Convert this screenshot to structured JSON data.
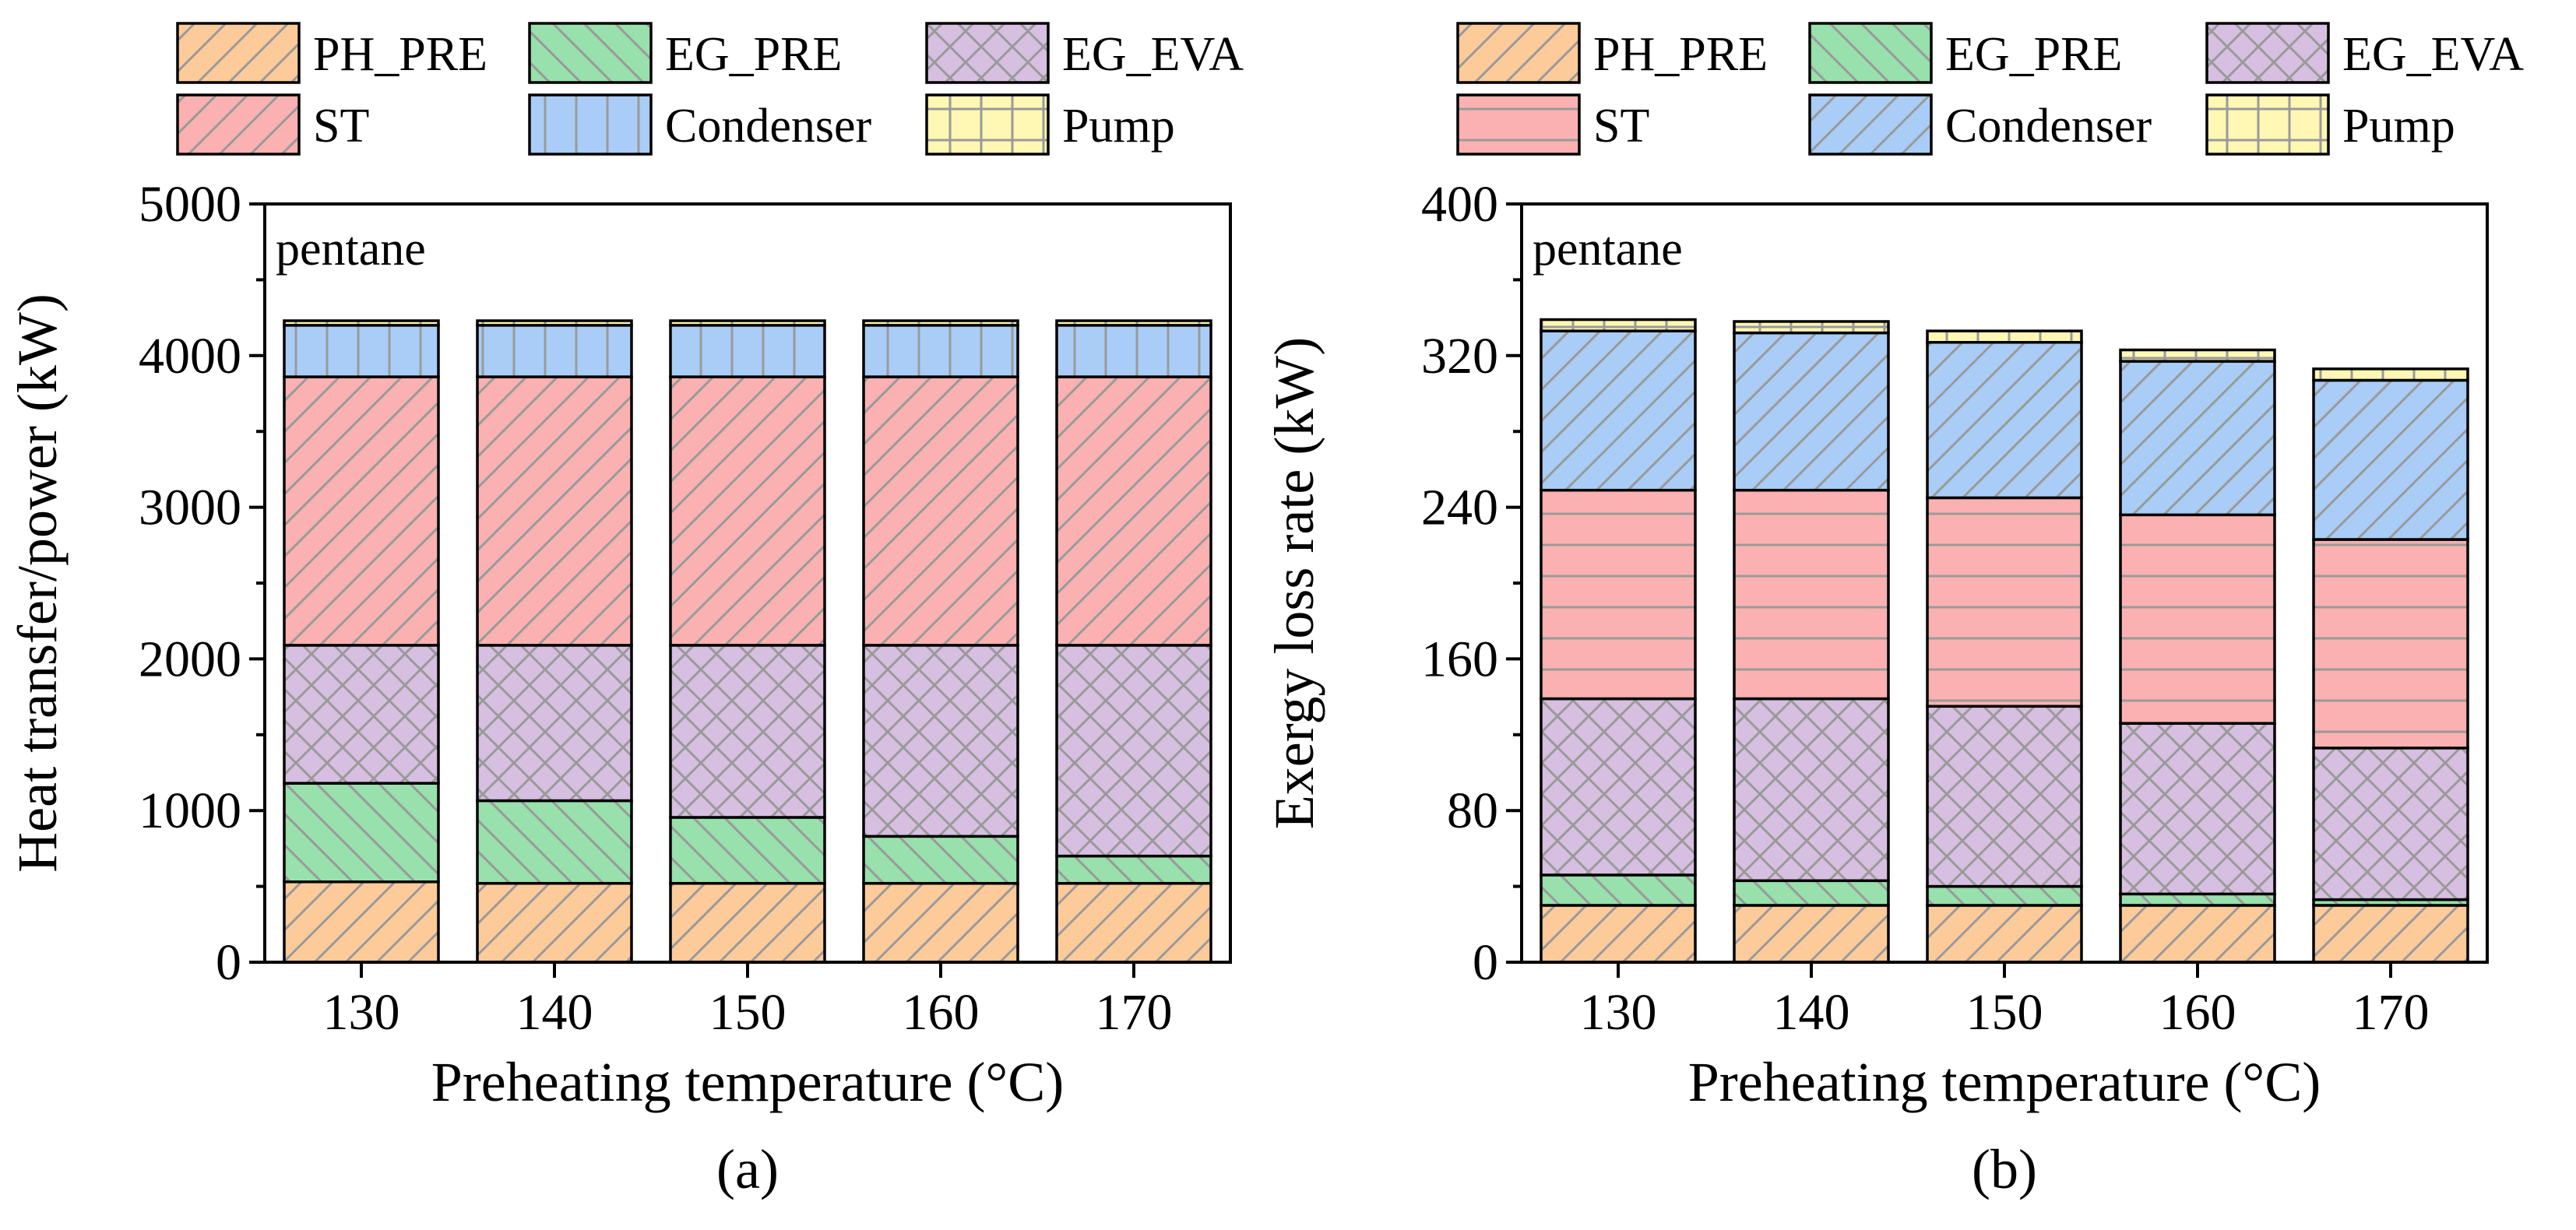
{
  "figure": {
    "hatch_color": "#9a9a9a",
    "legend": [
      {
        "key": "PH_PRE",
        "label": "PH_PRE"
      },
      {
        "key": "EG_PRE",
        "label": "EG_PRE"
      },
      {
        "key": "EG_EVA",
        "label": "EG_EVA"
      },
      {
        "key": "ST",
        "label": "ST"
      },
      {
        "key": "Condenser",
        "label": "Condenser"
      },
      {
        "key": "Pump",
        "label": "Pump"
      }
    ]
  },
  "chart_data": [
    {
      "type": "bar",
      "stacked": true,
      "panel": "a",
      "caption": "(a)",
      "inset_label": "pentane",
      "xlabel": "Preheating temperature (°C)",
      "ylabel": "Heat transfer/power (kW)",
      "ylim": [
        0,
        5000
      ],
      "yticks": [
        0,
        1000,
        2000,
        3000,
        4000,
        5000
      ],
      "yminor": [
        500,
        1500,
        2500,
        3500,
        4500
      ],
      "categories": [
        "130",
        "140",
        "150",
        "160",
        "170"
      ],
      "series": [
        {
          "name": "PH_PRE",
          "color": "#fdcb9a",
          "pattern": "diag",
          "values": [
            530,
            520,
            520,
            520,
            520
          ]
        },
        {
          "name": "EG_PRE",
          "color": "#98e0ac",
          "pattern": "back",
          "values": [
            650,
            545,
            435,
            310,
            180
          ]
        },
        {
          "name": "EG_EVA",
          "color": "#d6bfe0",
          "pattern": "cross",
          "values": [
            910,
            1025,
            1135,
            1260,
            1390
          ]
        },
        {
          "name": "ST",
          "color": "#fbb1b1",
          "pattern": "diag",
          "values": [
            1770,
            1770,
            1770,
            1770,
            1770
          ]
        },
        {
          "name": "Condenser",
          "color": "#a9cdf6",
          "pattern": "vert",
          "values": [
            340,
            340,
            340,
            340,
            340
          ]
        },
        {
          "name": "Pump",
          "color": "#fff7b3",
          "pattern": "grid",
          "values": [
            30,
            30,
            30,
            30,
            30
          ]
        }
      ]
    },
    {
      "type": "bar",
      "stacked": true,
      "panel": "b",
      "caption": "(b)",
      "inset_label": "pentane",
      "xlabel": "Preheating temperature (°C)",
      "ylabel": "Exergy loss rate (kW)",
      "ylim": [
        0,
        400
      ],
      "yticks": [
        0,
        80,
        160,
        240,
        320,
        400
      ],
      "yminor": [
        40,
        120,
        200,
        280,
        360
      ],
      "categories": [
        "130",
        "140",
        "150",
        "160",
        "170"
      ],
      "series": [
        {
          "name": "PH_PRE",
          "color": "#fdcb9a",
          "pattern": "diag",
          "values": [
            30,
            30,
            30,
            30,
            30
          ]
        },
        {
          "name": "EG_PRE",
          "color": "#98e0ac",
          "pattern": "back",
          "values": [
            16,
            13,
            10,
            6,
            3
          ]
        },
        {
          "name": "EG_EVA",
          "color": "#d6bfe0",
          "pattern": "cross",
          "values": [
            93,
            96,
            95,
            90,
            80
          ]
        },
        {
          "name": "ST",
          "color": "#fbb1b1",
          "pattern": "horiz",
          "values": [
            110,
            110,
            110,
            110,
            110
          ]
        },
        {
          "name": "Condenser",
          "color": "#a9cdf6",
          "pattern": "diag",
          "values": [
            84,
            83,
            82,
            81,
            84
          ]
        },
        {
          "name": "Pump",
          "color": "#fff7b3",
          "pattern": "grid",
          "values": [
            6,
            6,
            6,
            6,
            6
          ]
        }
      ]
    }
  ]
}
